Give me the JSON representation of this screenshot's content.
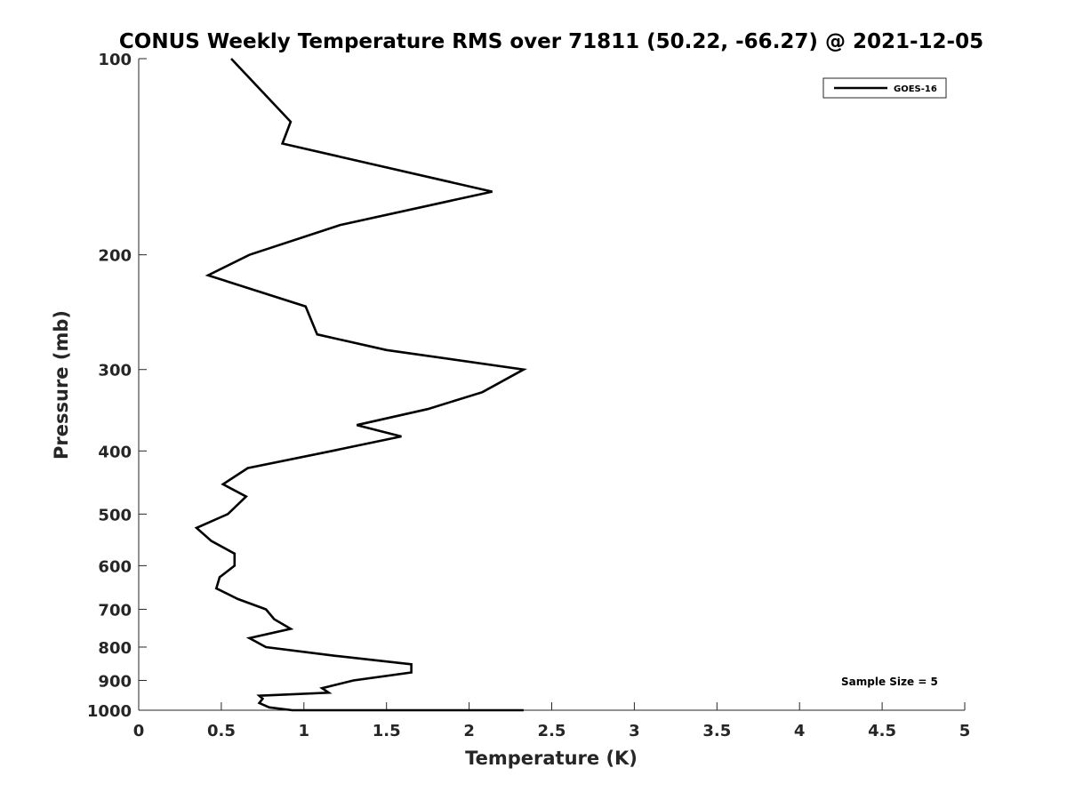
{
  "chart_data": {
    "type": "line",
    "title": "CONUS Weekly Temperature RMS over 71811 (50.22, -66.27) @ 2021-12-05",
    "xlabel": "Temperature (K)",
    "ylabel": "Pressure (mb)",
    "xlim": [
      0,
      5
    ],
    "ylim": [
      100,
      1000
    ],
    "yscale": "log",
    "y_reversed": true,
    "xticks": [
      "0",
      "0.5",
      "1",
      "1.5",
      "2",
      "2.5",
      "3",
      "3.5",
      "4",
      "4.5",
      "5"
    ],
    "yticks": [
      "100",
      "200",
      "300",
      "400",
      "500",
      "600",
      "700",
      "800",
      "900",
      "1000"
    ],
    "grid": false,
    "legend": {
      "position": "top-right",
      "entries": [
        "GOES-16"
      ]
    },
    "annotation": "Sample Size = 5",
    "series": [
      {
        "name": "GOES-16",
        "color": "#000000",
        "x": [
          0.56,
          0.92,
          0.87,
          2.14,
          1.22,
          0.67,
          0.42,
          1.01,
          1.08,
          1.5,
          2.33,
          2.08,
          1.75,
          1.32,
          1.59,
          1.17,
          0.66,
          0.51,
          0.65,
          0.54,
          0.35,
          0.44,
          0.58,
          0.58,
          0.49,
          0.47,
          0.6,
          0.77,
          0.82,
          0.92,
          0.67,
          0.77,
          1.19,
          1.65,
          1.65,
          1.3,
          1.11,
          1.15,
          0.73,
          0.75,
          0.73,
          0.79,
          0.93,
          1.5,
          2.33
        ],
        "y": [
          100,
          125,
          135,
          160,
          180,
          200,
          215,
          240,
          265,
          280,
          300,
          325,
          345,
          365,
          380,
          400,
          425,
          450,
          470,
          500,
          525,
          550,
          575,
          600,
          625,
          650,
          675,
          700,
          725,
          750,
          775,
          800,
          825,
          850,
          875,
          900,
          925,
          940,
          950,
          960,
          975,
          990,
          1000,
          1005,
          1010
        ]
      }
    ]
  }
}
